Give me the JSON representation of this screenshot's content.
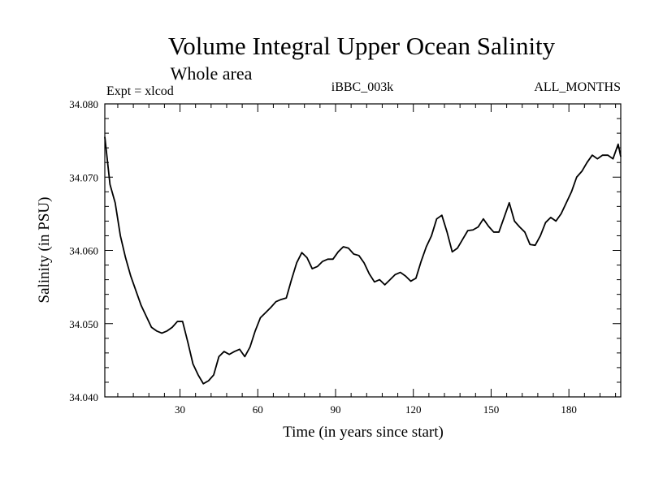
{
  "chart_data": {
    "type": "line",
    "title": "Volume Integral Upper Ocean Salinity",
    "subtitle": "Whole area",
    "expt_label": "Expt = xlcod",
    "run_label": "iBBC_003k",
    "period_label": "ALL_MONTHS",
    "xlabel": "Time (in years since start)",
    "ylabel": "Salinity (in PSU)",
    "xlim": [
      1,
      200
    ],
    "ylim": [
      34.04,
      34.08
    ],
    "xticks": [
      30,
      60,
      90,
      120,
      150,
      180
    ],
    "xtick_labels": [
      "30",
      "60",
      "90",
      "120",
      "150",
      "180"
    ],
    "yticks": [
      34.04,
      34.05,
      34.06,
      34.07,
      34.08
    ],
    "ytick_labels": [
      "34.040",
      "34.050",
      "34.060",
      "34.070",
      "34.080"
    ],
    "series": [
      {
        "name": "Salinity",
        "x": [
          1,
          3,
          5,
          7,
          9,
          11,
          13,
          15,
          17,
          19,
          21,
          23,
          25,
          27,
          29,
          31,
          33,
          35,
          37,
          39,
          41,
          43,
          45,
          47,
          49,
          51,
          53,
          55,
          57,
          59,
          61,
          63,
          65,
          67,
          69,
          71,
          73,
          75,
          77,
          79,
          81,
          83,
          85,
          87,
          89,
          91,
          93,
          95,
          97,
          99,
          101,
          103,
          105,
          107,
          109,
          111,
          113,
          115,
          117,
          119,
          121,
          123,
          125,
          127,
          129,
          131,
          133,
          135,
          137,
          139,
          141,
          143,
          145,
          147,
          149,
          151,
          153,
          155,
          157,
          159,
          161,
          163,
          165,
          167,
          169,
          171,
          173,
          175,
          177,
          179,
          181,
          183,
          185,
          187,
          189,
          191,
          193,
          195,
          197,
          199,
          200
        ],
        "y": [
          34.0755,
          34.069,
          34.0665,
          34.062,
          34.059,
          34.0565,
          34.0545,
          34.0525,
          34.051,
          34.0495,
          34.049,
          34.0487,
          34.049,
          34.0495,
          34.0503,
          34.0503,
          34.0475,
          34.0445,
          34.043,
          34.0418,
          34.0422,
          34.043,
          34.0455,
          34.0462,
          34.0458,
          34.0462,
          34.0465,
          34.0455,
          34.0468,
          34.049,
          34.0508,
          34.0515,
          34.0522,
          34.053,
          34.0533,
          34.0535,
          34.056,
          34.0583,
          34.0597,
          34.059,
          34.0575,
          34.0578,
          34.0585,
          34.0588,
          34.0588,
          34.0598,
          34.0605,
          34.0603,
          34.0595,
          34.0593,
          34.0583,
          34.0568,
          34.0557,
          34.056,
          34.0553,
          34.056,
          34.0567,
          34.057,
          34.0565,
          34.0558,
          34.0562,
          34.0585,
          34.0605,
          34.062,
          34.0643,
          34.0648,
          34.0625,
          34.0598,
          34.0603,
          34.0615,
          34.0627,
          34.0628,
          34.0632,
          34.0643,
          34.0633,
          34.0625,
          34.0625,
          34.0645,
          34.0665,
          34.064,
          34.0632,
          34.0625,
          34.0608,
          34.0607,
          34.062,
          34.0638,
          34.0645,
          34.064,
          34.065,
          34.0665,
          34.068,
          34.07,
          34.0708,
          34.072,
          34.073,
          34.0725,
          34.073,
          34.073,
          34.0725,
          34.0745,
          34.0728
        ]
      }
    ]
  }
}
